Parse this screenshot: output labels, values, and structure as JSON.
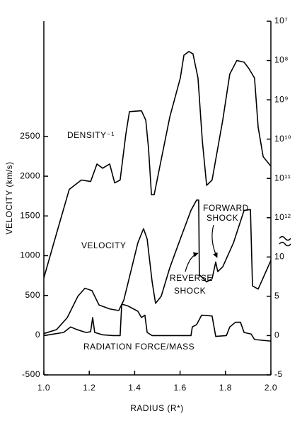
{
  "chart_data": {
    "type": "line",
    "xlabel": "RADIUS (R*)",
    "ylabel": "VELOCITY (km/s)",
    "xlim": [
      1.0,
      2.0
    ],
    "xticks": [
      {
        "value": 1.0,
        "label": "1.0"
      },
      1.2,
      1.4,
      1.6,
      1.8,
      {
        "value": 2.0,
        "label": "2.0"
      }
    ],
    "ylim": [
      -500,
      3950
    ],
    "yticks": [
      -500,
      0,
      500,
      1000,
      1500,
      2000,
      2500
    ],
    "y2lim": [
      -5,
      40
    ],
    "y2ticks": [
      -5,
      0,
      5,
      10
    ],
    "y3lim": [
      1e+16,
      10000000.0
    ],
    "y3log": true,
    "y3ticks": [
      {
        "value": 10000000.0,
        "label": "10⁷"
      },
      {
        "value": 100000000.0,
        "label": "10⁸"
      },
      {
        "value": 1000000000.0,
        "label": "10⁹"
      },
      {
        "value": 10000000000.0,
        "label": "10¹⁰"
      },
      {
        "value": 100000000000.0,
        "label": "10¹¹"
      },
      {
        "value": 1000000000000.0,
        "label": "10¹²"
      }
    ],
    "annotations": [
      {
        "lines": [
          "FORWARD",
          "SHOCK"
        ]
      },
      {
        "lines": [
          "REVERSE",
          "SHOCK"
        ]
      }
    ],
    "series": [
      {
        "name": "DENSITY⁻¹",
        "color": "#000000",
        "axis": "y3",
        "x": [
          1.0,
          1.056,
          1.112,
          1.165,
          1.206,
          1.234,
          1.259,
          1.29,
          1.312,
          1.336,
          1.361,
          1.377,
          1.43,
          1.449,
          1.461,
          1.474,
          1.486,
          1.508,
          1.555,
          1.601,
          1.617,
          1.639,
          1.657,
          1.679,
          1.698,
          1.717,
          1.741,
          1.788,
          1.819,
          1.85,
          1.882,
          1.903,
          1.928,
          1.944,
          1.966,
          2.0
        ],
        "values": [
          34000000000000.0,
          2500000000000.0,
          190000000000.0,
          110000000000.0,
          120000000000.0,
          43000000000.0,
          55000000000.0,
          43000000000.0,
          130000000000.0,
          110000000000.0,
          7600000000.0,
          2000000000.0,
          1900000000.0,
          3300000000.0,
          17000000000.0,
          260000000000.0,
          260000000000.0,
          60000000000.0,
          2700000000.0,
          280000000.0,
          73000000.0,
          59000000.0,
          68000000.0,
          280000000.0,
          11000000000.0,
          150000000000.0,
          110000000000.0,
          3300000000.0,
          220000000.0,
          100000000.0,
          110000000.0,
          160000000.0,
          280000000.0,
          5000000000.0,
          28000000000.0,
          49000000000.0
        ]
      },
      {
        "name": "VELOCITY",
        "color": "#000000",
        "x": [
          1.0,
          1.056,
          1.103,
          1.15,
          1.181,
          1.212,
          1.243,
          1.29,
          1.33,
          1.352,
          1.383,
          1.414,
          1.439,
          1.455,
          1.477,
          1.492,
          1.517,
          1.555,
          1.601,
          1.648,
          1.673,
          1.682,
          1.685,
          1.717,
          1.741,
          1.757,
          1.766,
          1.788,
          1.835,
          1.882,
          1.91,
          1.919,
          1.944,
          2.0
        ],
        "values": [
          20,
          70,
          220,
          490,
          590,
          560,
          380,
          330,
          310,
          440,
          800,
          1160,
          1340,
          1210,
          670,
          400,
          490,
          850,
          1210,
          1570,
          1700,
          1700,
          760,
          670,
          710,
          920,
          800,
          860,
          1160,
          1570,
          1580,
          620,
          580,
          940
        ]
      },
      {
        "name": "RADIATION FORCE/MASS",
        "color": "#000000",
        "axis": "y2",
        "x": [
          1.0,
          1.087,
          1.118,
          1.143,
          1.174,
          1.187,
          1.206,
          1.215,
          1.224,
          1.259,
          1.305,
          1.336,
          1.343,
          1.368,
          1.414,
          1.43,
          1.445,
          1.455,
          1.477,
          1.648,
          1.654,
          1.673,
          1.695,
          1.741,
          1.757,
          1.804,
          1.819,
          1.844,
          1.866,
          1.882,
          1.913,
          1.928,
          2.0
        ],
        "values": [
          0,
          0.4,
          1.1,
          0.8,
          0.5,
          0.4,
          0.5,
          2.3,
          0.4,
          0.1,
          0,
          0,
          4.0,
          3.8,
          3.1,
          2.3,
          2.6,
          0.4,
          0,
          0,
          1.1,
          1.4,
          2.6,
          2.5,
          -0.1,
          0,
          1.1,
          1.7,
          1.7,
          0.4,
          0.2,
          -0.5,
          -0.7
        ]
      }
    ]
  }
}
